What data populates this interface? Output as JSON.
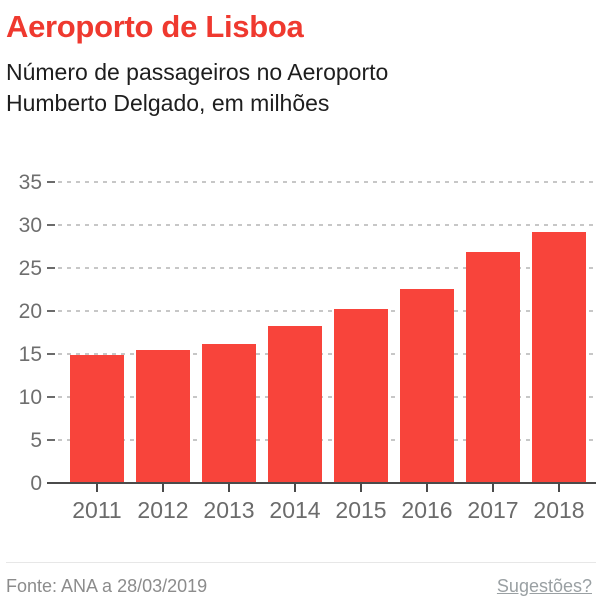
{
  "header": {
    "title": "Aeroporto de Lisboa",
    "subtitle_lines": [
      "Número de passageiros no Aeroporto",
      "Humberto Delgado, em milhões"
    ]
  },
  "chart_data": {
    "type": "bar",
    "title": "Aeroporto de Lisboa",
    "subtitle": "Número de passageiros no Aeroporto Humberto Delgado, em milhões",
    "categories": [
      "2011",
      "2012",
      "2013",
      "2014",
      "2015",
      "2016",
      "2017",
      "2018"
    ],
    "values": [
      14.8,
      15.3,
      16.0,
      18.1,
      20.1,
      22.4,
      26.7,
      29.1
    ],
    "xlabel": "",
    "ylabel": "",
    "ylim": [
      0,
      35
    ],
    "yticks": [
      0,
      5,
      10,
      15,
      20,
      25,
      30,
      35
    ],
    "grid": "horizontal-dashed",
    "legend": "none",
    "bar_color": "#f8443b",
    "source": "Fonte: ANA a 28/03/2019"
  },
  "footer": {
    "source": "Fonte: ANA a 28/03/2019",
    "suggestions_label": "Sugestões?"
  },
  "colors": {
    "title": "#ef392f",
    "subtitle": "#1e1e1e",
    "bar": "#f8443b",
    "axis_text": "#6e6e6e",
    "grid_dash": "#c7c7c7",
    "axis_line": "#4b4b4b",
    "footer_text": "#8c8c8c",
    "link_text": "#9aa0a3",
    "divider": "#e7e7e7"
  }
}
